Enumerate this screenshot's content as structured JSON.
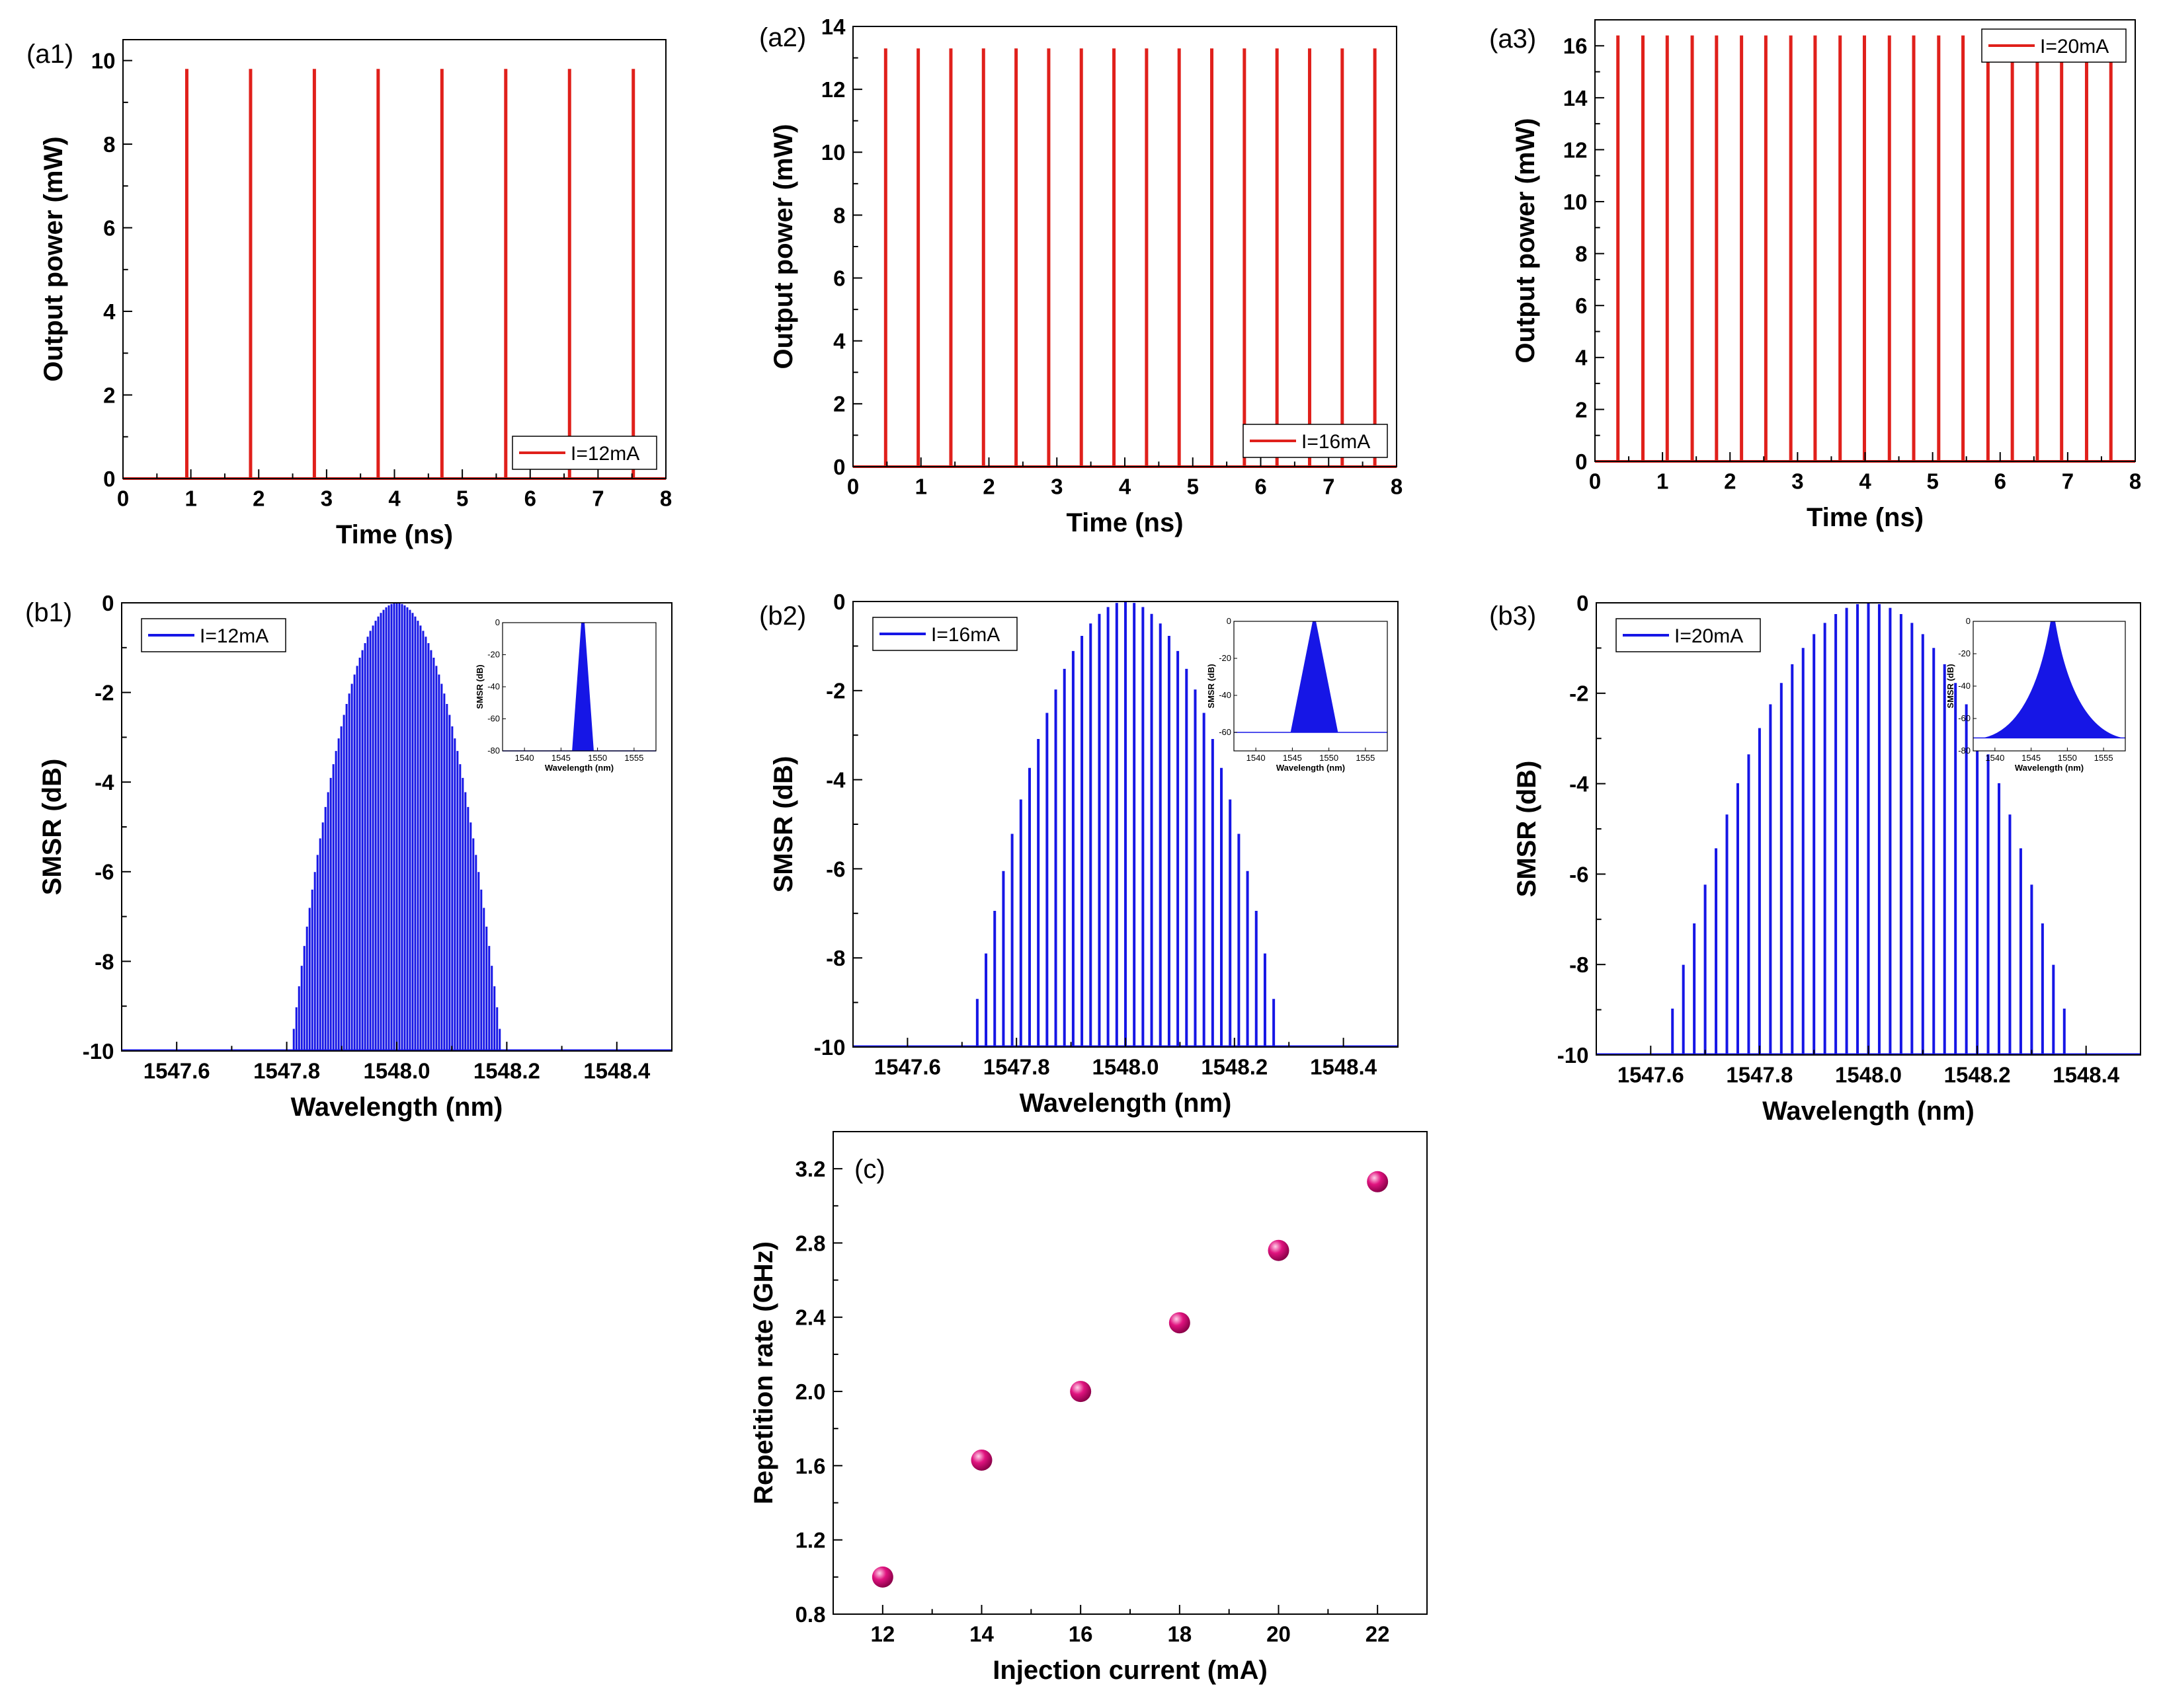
{
  "colors": {
    "pulse": "#e0201b",
    "spectrum": "#1616e6",
    "marker": "#e0137f"
  },
  "chart_data": [
    {
      "id": "a1",
      "type": "line",
      "panel_label": "(a1)",
      "xlabel": "Time (ns)",
      "ylabel": "Output power (mW)",
      "xlim": [
        0,
        8
      ],
      "ylim": [
        0,
        10.5
      ],
      "xticks": [
        "0",
        "1",
        "2",
        "3",
        "4",
        "5",
        "6",
        "7",
        "8"
      ],
      "yticks": [
        "0",
        "2",
        "4",
        "6",
        "8",
        "10"
      ],
      "legend": "I=12mA",
      "legend_position": "bottom-right",
      "series": [
        {
          "name": "I=12mA",
          "pulse_times": [
            0.94,
            1.88,
            2.82,
            3.76,
            4.7,
            5.64,
            6.58,
            7.52
          ],
          "peak": 9.8
        }
      ]
    },
    {
      "id": "a2",
      "type": "line",
      "panel_label": "(a2)",
      "xlabel": "Time (ns)",
      "ylabel": "Output power (mW)",
      "xlim": [
        0,
        8
      ],
      "ylim": [
        0,
        14
      ],
      "xticks": [
        "0",
        "1",
        "2",
        "3",
        "4",
        "5",
        "6",
        "7",
        "8"
      ],
      "yticks": [
        "0",
        "2",
        "4",
        "6",
        "8",
        "10",
        "12",
        "14"
      ],
      "legend": "I=16mA",
      "legend_position": "bottom-right",
      "series": [
        {
          "name": "I=16mA",
          "pulse_times": [
            0.48,
            0.96,
            1.44,
            1.92,
            2.4,
            2.88,
            3.36,
            3.84,
            4.32,
            4.8,
            5.28,
            5.76,
            6.24,
            6.72,
            7.2,
            7.68
          ],
          "peak": 13.3
        }
      ]
    },
    {
      "id": "a3",
      "type": "line",
      "panel_label": "(a3)",
      "xlabel": "Time (ns)",
      "ylabel": "Output power (mW)",
      "xlim": [
        0,
        8
      ],
      "ylim": [
        0,
        17
      ],
      "xticks": [
        "0",
        "1",
        "2",
        "3",
        "4",
        "5",
        "6",
        "7",
        "8"
      ],
      "yticks": [
        "0",
        "2",
        "4",
        "6",
        "8",
        "10",
        "12",
        "14",
        "16"
      ],
      "legend": "I=20mA",
      "legend_position": "top-right",
      "series": [
        {
          "name": "I=20mA",
          "pulse_times": [
            0.34,
            0.71,
            1.07,
            1.44,
            1.8,
            2.17,
            2.53,
            2.9,
            3.26,
            3.63,
            3.99,
            4.36,
            4.72,
            5.09,
            5.45,
            5.82,
            6.18,
            6.55,
            6.91,
            7.28,
            7.64
          ],
          "peak": 16.4
        }
      ]
    },
    {
      "id": "b1",
      "type": "line",
      "panel_label": "(b1)",
      "xlabel": "Wavelength (nm)",
      "ylabel": "SMSR (dB)",
      "xlim": [
        1547.5,
        1548.5
      ],
      "ylim": [
        -10,
        0
      ],
      "xticks": [
        "1547.6",
        "1547.8",
        "1548.0",
        "1548.2",
        "1548.4"
      ],
      "yticks": [
        "-10",
        "-8",
        "-6",
        "-4",
        "-2",
        "0"
      ],
      "legend": "I=12mA",
      "legend_position": "top-left",
      "series": [
        {
          "name": "I=12mA",
          "center": 1548.0,
          "half_width": 0.19,
          "line_spacing": 0.0048
        }
      ],
      "inset": {
        "xlabel": "Wavelength (nm)",
        "ylabel": "SMSR (dB)",
        "xlim": [
          1537,
          1558
        ],
        "ylim": [
          -80,
          0
        ],
        "xticks": [
          "1540",
          "1545",
          "1550",
          "1555"
        ],
        "yticks": [
          "0",
          "-20",
          "-40",
          "-60",
          "-80"
        ],
        "half_width": 0.9,
        "floor": -80
      }
    },
    {
      "id": "b2",
      "type": "line",
      "panel_label": "(b2)",
      "xlabel": "Wavelength (nm)",
      "ylabel": "SMSR (dB)",
      "xlim": [
        1547.5,
        1548.5
      ],
      "ylim": [
        -10,
        0
      ],
      "xticks": [
        "1547.6",
        "1547.8",
        "1548.0",
        "1548.2",
        "1548.4"
      ],
      "yticks": [
        "-10",
        "-8",
        "-6",
        "-4",
        "-2",
        "0"
      ],
      "legend": "I=16mA",
      "legend_position": "top-left",
      "series": [
        {
          "name": "I=16mA",
          "center": 1548.0,
          "half_width": 0.28,
          "line_spacing": 0.016
        }
      ],
      "inset": {
        "xlabel": "Wavelength (nm)",
        "ylabel": "SMSR (dB)",
        "xlim": [
          1537,
          1558
        ],
        "ylim": [
          -70,
          0
        ],
        "xticks": [
          "1540",
          "1545",
          "1550",
          "1555"
        ],
        "yticks": [
          "0",
          "-20",
          "-40",
          "-60"
        ],
        "half_width": 2.0,
        "floor": -60
      }
    },
    {
      "id": "b3",
      "type": "line",
      "panel_label": "(b3)",
      "xlabel": "Wavelength (nm)",
      "ylabel": "SMSR (dB)",
      "xlim": [
        1547.5,
        1548.5
      ],
      "ylim": [
        -10,
        0
      ],
      "xticks": [
        "1547.6",
        "1547.8",
        "1548.0",
        "1548.2",
        "1548.4"
      ],
      "yticks": [
        "-10",
        "-8",
        "-6",
        "-4",
        "-2",
        "0"
      ],
      "legend": "I=20mA",
      "legend_position": "top-left",
      "series": [
        {
          "name": "I=20mA",
          "center": 1548.0,
          "half_width": 0.38,
          "line_spacing": 0.02
        }
      ],
      "inset": {
        "xlabel": "Wavelength (nm)",
        "ylabel": "SMSR (dB)",
        "xlim": [
          1537,
          1558
        ],
        "ylim": [
          -80,
          0
        ],
        "xticks": [
          "1540",
          "1545",
          "1550",
          "1555"
        ],
        "yticks": [
          "0",
          "-20",
          "-40",
          "-60",
          "-80"
        ],
        "half_width": 9.0,
        "floor": -72
      }
    },
    {
      "id": "c",
      "type": "scatter",
      "panel_label": "(c)",
      "xlabel": "Injection current (mA)",
      "ylabel": "Repetition rate (GHz)",
      "xlim": [
        11,
        23
      ],
      "ylim": [
        0.8,
        3.4
      ],
      "xticks": [
        "12",
        "14",
        "16",
        "18",
        "20",
        "22"
      ],
      "yticks": [
        "0.8",
        "1.2",
        "1.6",
        "2.0",
        "2.4",
        "2.8",
        "3.2"
      ],
      "x": [
        12,
        14,
        16,
        18,
        20,
        22
      ],
      "y": [
        1.0,
        1.63,
        2.0,
        2.37,
        2.76,
        3.13
      ]
    }
  ]
}
